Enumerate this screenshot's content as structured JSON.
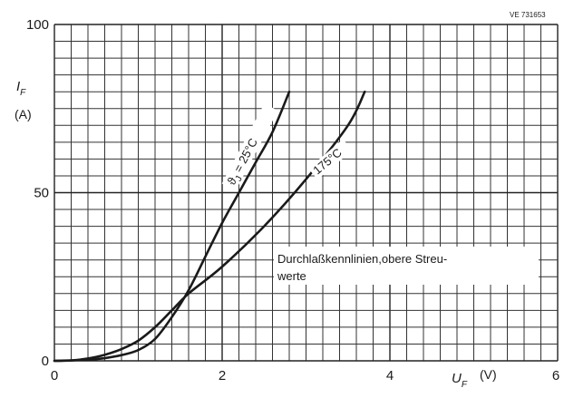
{
  "chart_data": {
    "type": "line",
    "figure_code": "VE 731653",
    "ylabel": {
      "symbol": "I",
      "subscript": "F",
      "unit": "(A)"
    },
    "xlabel": {
      "symbol": "U",
      "subscript": "F",
      "unit": "(V)"
    },
    "xlim": [
      0,
      6
    ],
    "ylim": [
      0,
      100
    ],
    "x_ticks": [
      "0",
      "2",
      "4",
      "6"
    ],
    "y_ticks": [
      "0",
      "50",
      "100"
    ],
    "grid": true,
    "series": [
      {
        "name": "ϑj = 25°C",
        "label_parts": {
          "symbol": "ϑ",
          "subscript": "J",
          "rest": " = 25°C"
        },
        "points": [
          [
            0,
            0
          ],
          [
            0.4,
            0.3
          ],
          [
            0.6,
            0.8
          ],
          [
            0.8,
            1.7
          ],
          [
            1.0,
            3.2
          ],
          [
            1.2,
            6.5
          ],
          [
            1.4,
            13
          ],
          [
            1.6,
            21
          ],
          [
            1.8,
            31
          ],
          [
            2.0,
            41
          ],
          [
            2.2,
            50
          ],
          [
            2.4,
            59
          ],
          [
            2.6,
            68
          ],
          [
            2.8,
            80
          ]
        ]
      },
      {
        "name": "175°C",
        "label_parts": {
          "symbol": "",
          "subscript": "",
          "rest": "175°C"
        },
        "points": [
          [
            0,
            0
          ],
          [
            0.2,
            0.1
          ],
          [
            0.4,
            0.7
          ],
          [
            0.6,
            1.8
          ],
          [
            0.8,
            3.5
          ],
          [
            1.0,
            6
          ],
          [
            1.2,
            10
          ],
          [
            1.4,
            15
          ],
          [
            1.6,
            20
          ],
          [
            2.0,
            28
          ],
          [
            2.5,
            40
          ],
          [
            3.0,
            54
          ],
          [
            3.5,
            70
          ],
          [
            3.7,
            80
          ]
        ]
      }
    ],
    "annotation": [
      "Durchlaßkennlinien,obere Streu-",
      "werte"
    ]
  }
}
